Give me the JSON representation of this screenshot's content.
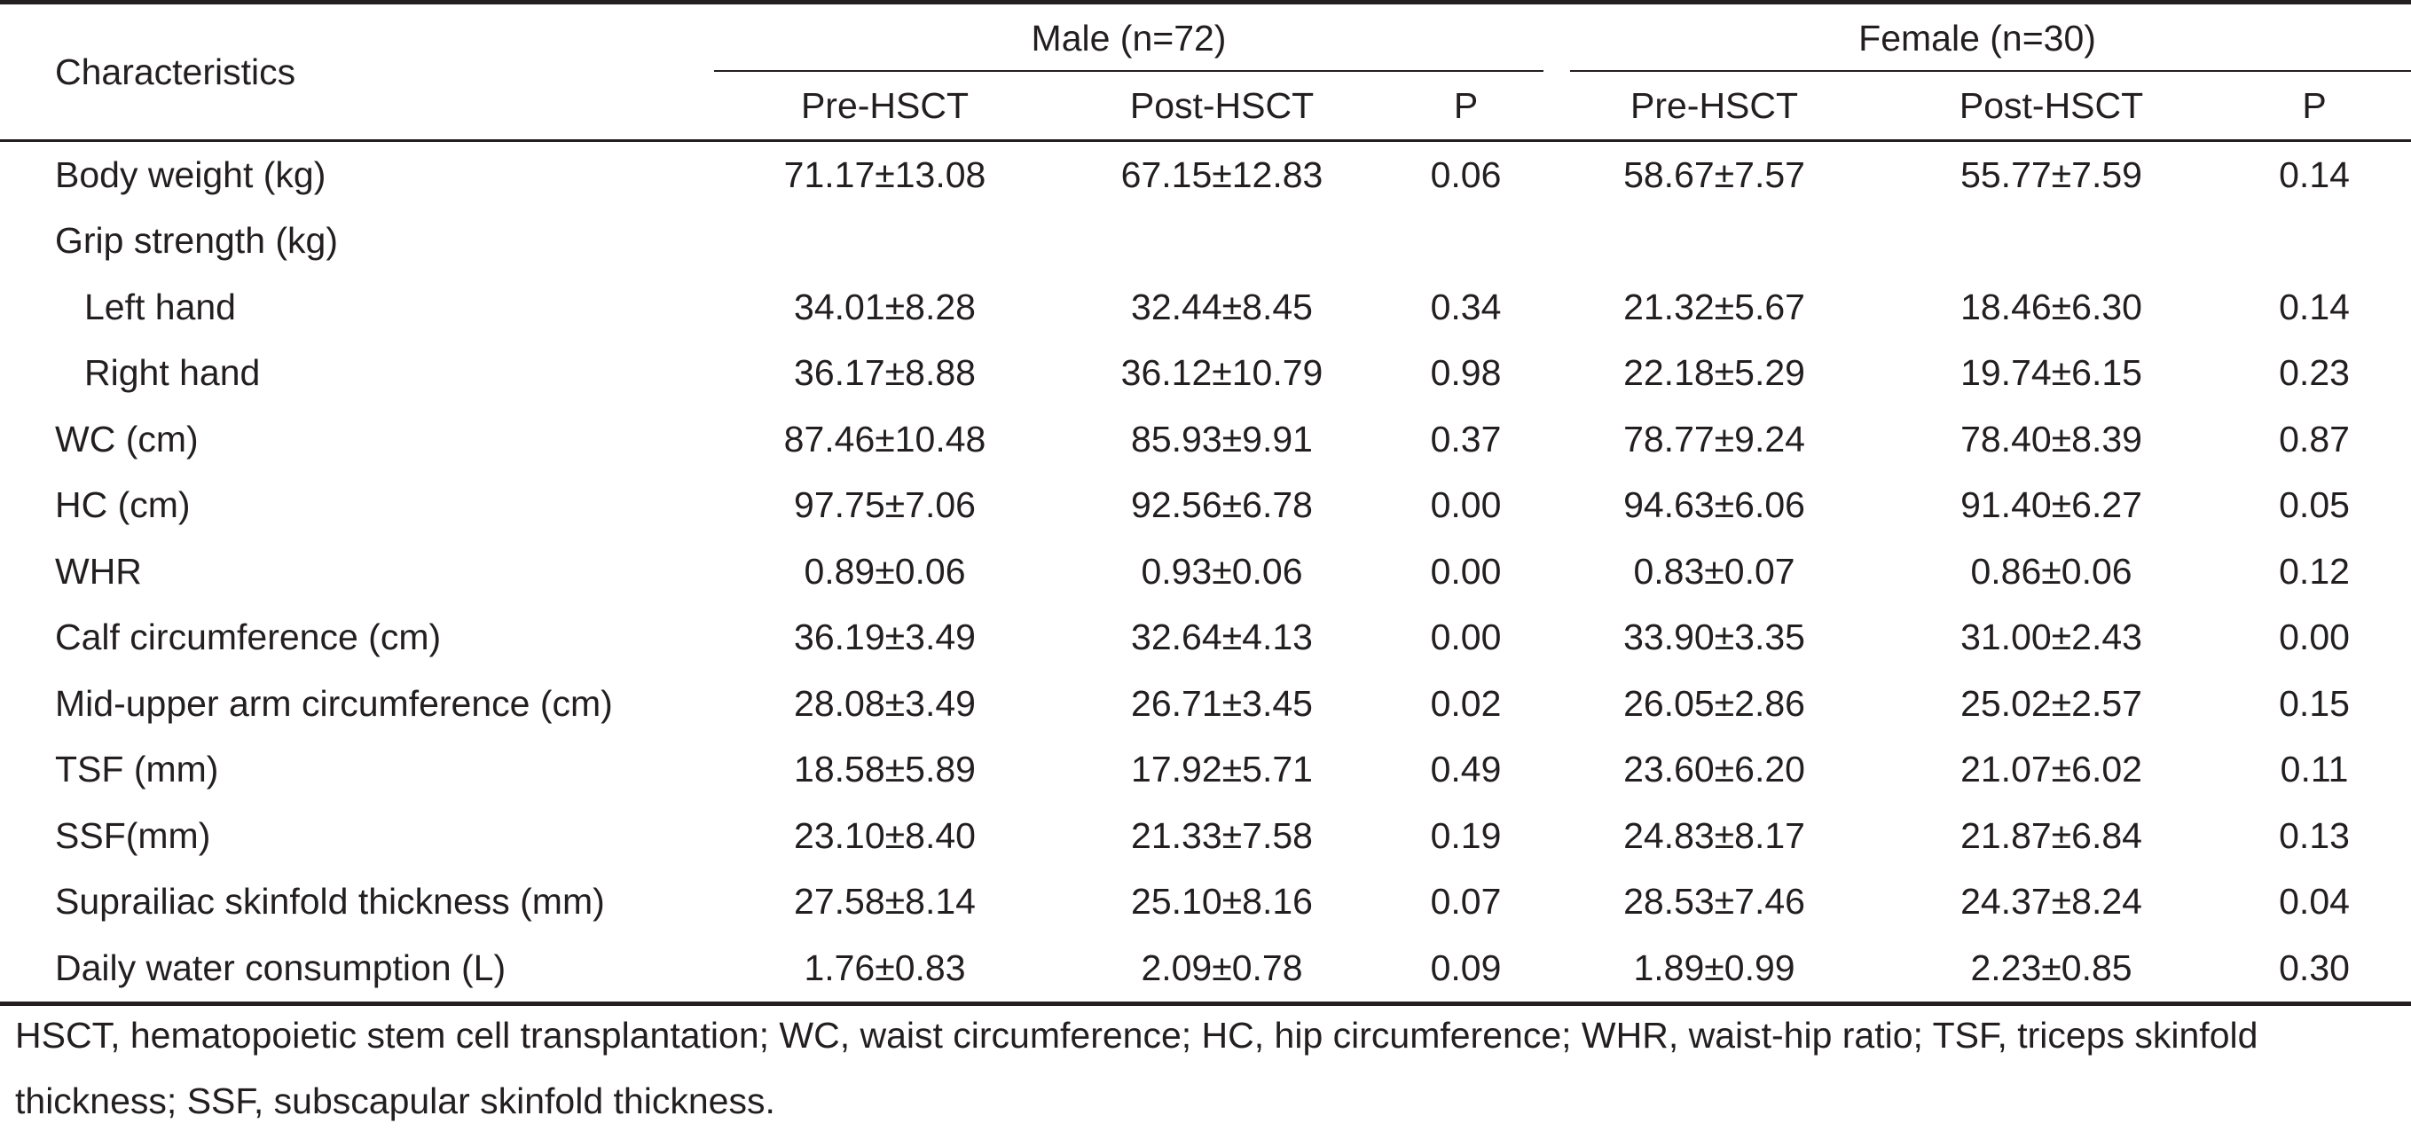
{
  "table": {
    "characteristics_header": "Characteristics",
    "groups": [
      {
        "label": "Male (n=72)",
        "sub": [
          "Pre-HSCT",
          "Post-HSCT",
          "P"
        ]
      },
      {
        "label": "Female (n=30)",
        "sub": [
          "Pre-HSCT",
          "Post-HSCT",
          "P"
        ]
      }
    ],
    "rows": [
      {
        "label": "Body weight (kg)",
        "indent": false,
        "values": [
          "71.17±13.08",
          "67.15±12.83",
          "0.06",
          "58.67±7.57",
          "55.77±7.59",
          "0.14"
        ]
      },
      {
        "label": "Grip strength (kg)",
        "indent": false,
        "values": [
          "",
          "",
          "",
          "",
          "",
          ""
        ]
      },
      {
        "label": "Left hand",
        "indent": true,
        "values": [
          "34.01±8.28",
          "32.44±8.45",
          "0.34",
          "21.32±5.67",
          "18.46±6.30",
          "0.14"
        ]
      },
      {
        "label": "Right hand",
        "indent": true,
        "values": [
          "36.17±8.88",
          "36.12±10.79",
          "0.98",
          "22.18±5.29",
          "19.74±6.15",
          "0.23"
        ]
      },
      {
        "label": "WC (cm)",
        "indent": false,
        "values": [
          "87.46±10.48",
          "85.93±9.91",
          "0.37",
          "78.77±9.24",
          "78.40±8.39",
          "0.87"
        ]
      },
      {
        "label": "HC (cm)",
        "indent": false,
        "values": [
          "97.75±7.06",
          "92.56±6.78",
          "0.00",
          "94.63±6.06",
          "91.40±6.27",
          "0.05"
        ]
      },
      {
        "label": "WHR",
        "indent": false,
        "values": [
          "0.89±0.06",
          "0.93±0.06",
          "0.00",
          "0.83±0.07",
          "0.86±0.06",
          "0.12"
        ]
      },
      {
        "label": "Calf circumference (cm)",
        "indent": false,
        "values": [
          "36.19±3.49",
          "32.64±4.13",
          "0.00",
          "33.90±3.35",
          "31.00±2.43",
          "0.00"
        ]
      },
      {
        "label": "Mid-upper arm circumference (cm)",
        "indent": false,
        "values": [
          "28.08±3.49",
          "26.71±3.45",
          "0.02",
          "26.05±2.86",
          "25.02±2.57",
          "0.15"
        ]
      },
      {
        "label": "TSF (mm)",
        "indent": false,
        "values": [
          "18.58±5.89",
          "17.92±5.71",
          "0.49",
          "23.60±6.20",
          "21.07±6.02",
          "0.11"
        ]
      },
      {
        "label": "SSF(mm)",
        "indent": false,
        "values": [
          "23.10±8.40",
          "21.33±7.58",
          "0.19",
          "24.83±8.17",
          "21.87±6.84",
          "0.13"
        ]
      },
      {
        "label": "Suprailiac skinfold thickness (mm)",
        "indent": false,
        "values": [
          "27.58±8.14",
          "25.10±8.16",
          "0.07",
          "28.53±7.46",
          "24.37±8.24",
          "0.04"
        ]
      },
      {
        "label": "Daily water consumption (L)",
        "indent": false,
        "values": [
          "1.76±0.83",
          "2.09±0.78",
          "0.09",
          "1.89±0.99",
          "2.23±0.85",
          "0.30"
        ]
      }
    ]
  },
  "footnote": "HSCT, hematopoietic stem cell transplantation; WC, waist circumference; HC, hip circumference; WHR, waist-hip ratio; TSF, triceps skinfold thickness; SSF, subscapular skinfold thickness."
}
